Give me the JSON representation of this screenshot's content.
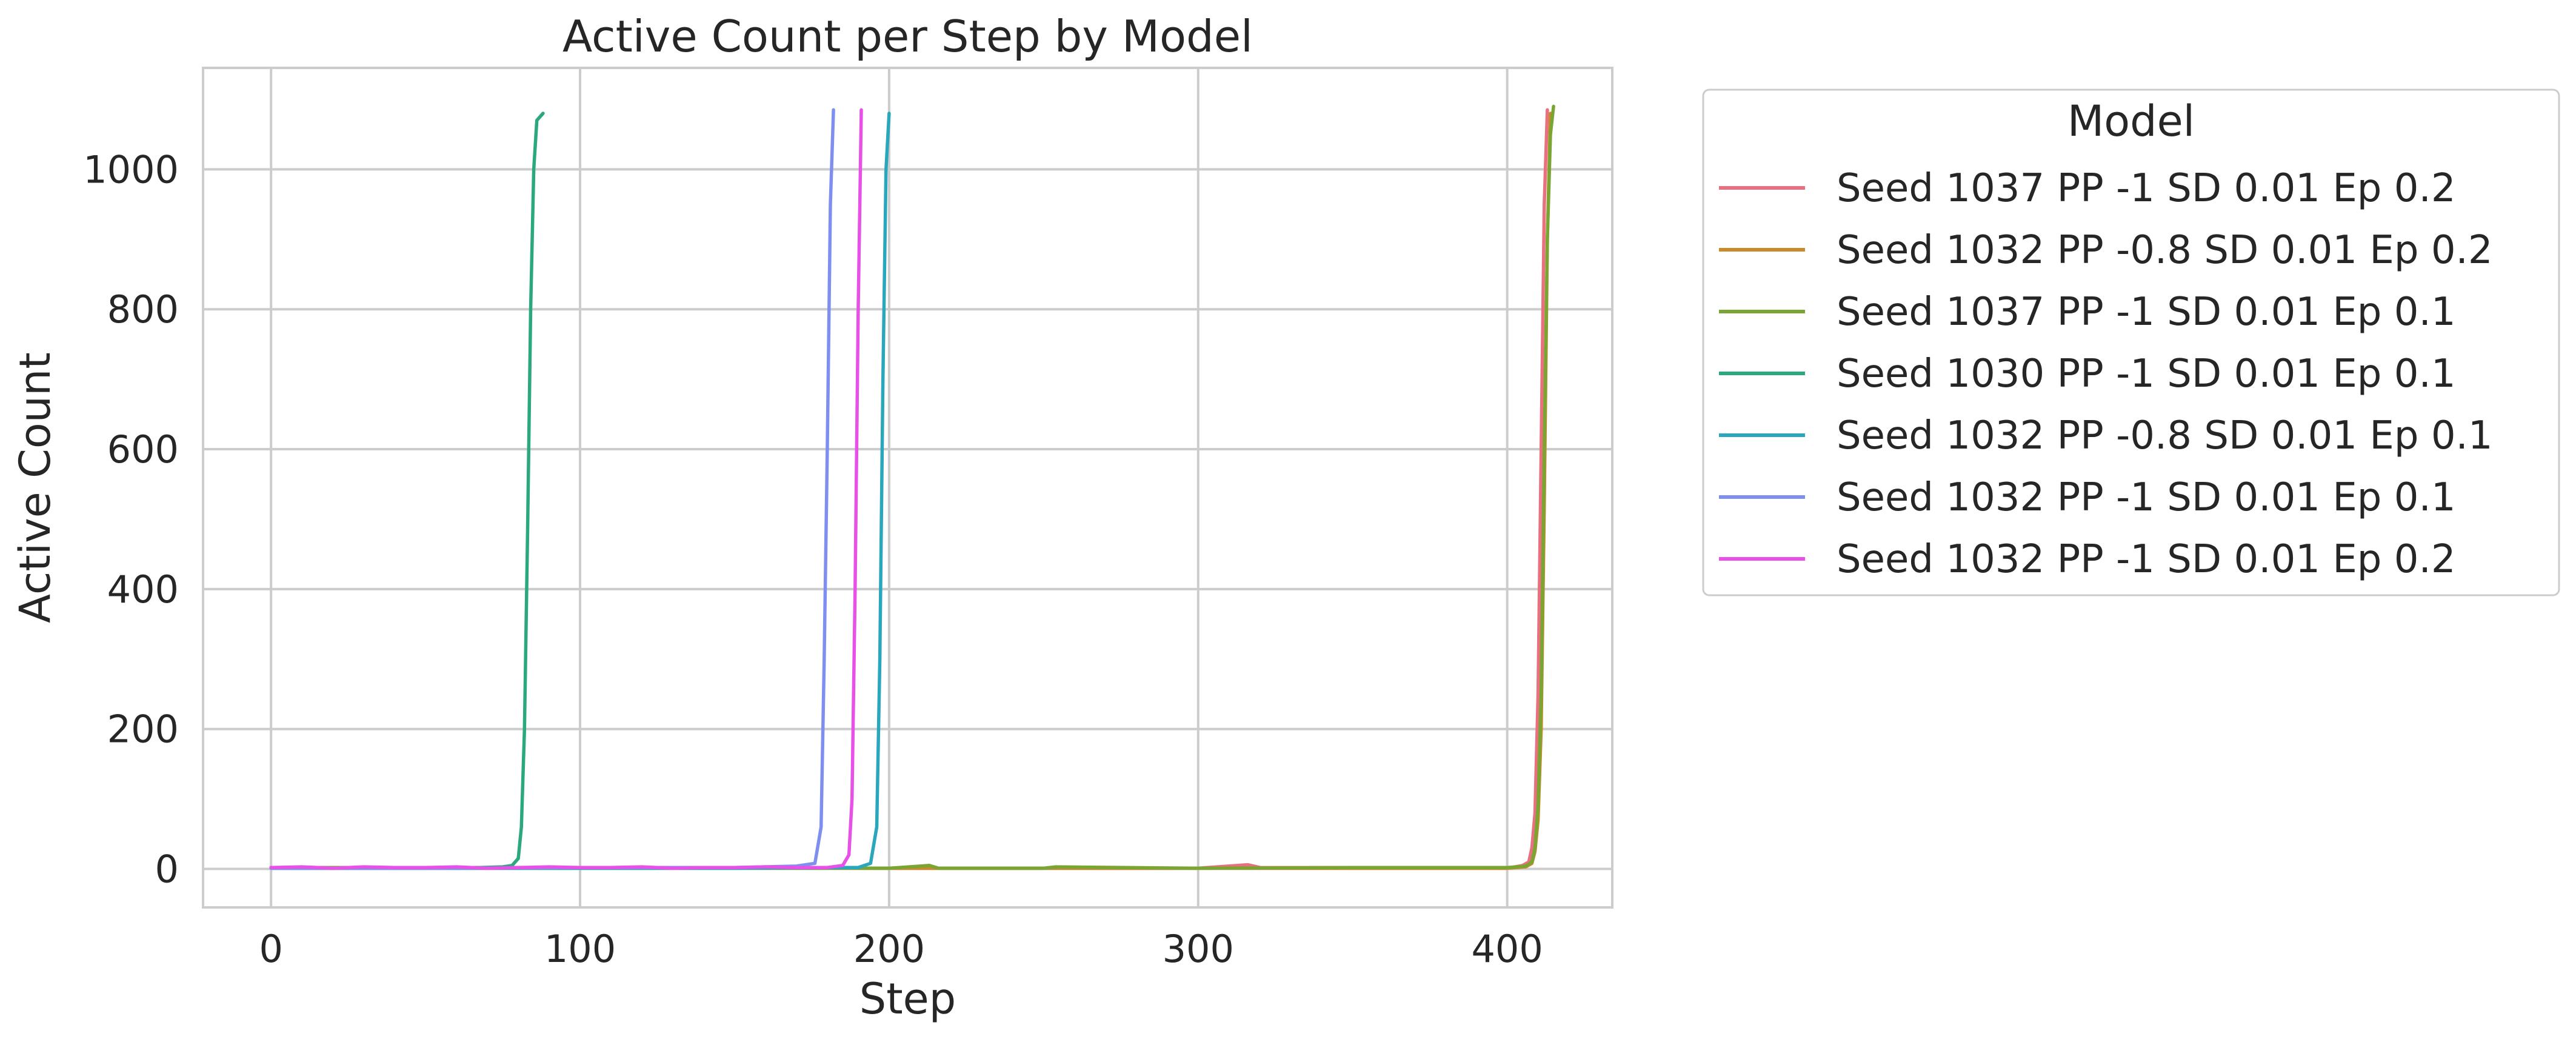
{
  "chart_data": {
    "type": "line",
    "title": "Active Count per Step by Model",
    "xlabel": "Step",
    "ylabel": "Active Count",
    "xlim": [
      -22,
      434
    ],
    "ylim": [
      -55,
      1145
    ],
    "xticks": [
      0,
      100,
      200,
      300,
      400
    ],
    "yticks": [
      0,
      200,
      400,
      600,
      800,
      1000
    ],
    "grid": true,
    "legend": {
      "title": "Model",
      "placement": "outside-right-top"
    },
    "series": [
      {
        "name": "Seed 1037 PP -1 SD 0.01 Ep 0.2",
        "color": "#e8707f",
        "x": [
          0,
          100,
          200,
          300,
          316,
          320,
          400,
          405,
          407,
          408,
          409,
          410,
          411,
          412,
          413
        ],
        "y": [
          2,
          2,
          1,
          1,
          6,
          2,
          1,
          5,
          10,
          30,
          80,
          250,
          600,
          950,
          1085
        ]
      },
      {
        "name": "Seed 1032 PP -0.8 SD 0.01 Ep 0.2",
        "color": "#c88a2b",
        "x": [
          0,
          100,
          200,
          300,
          400,
          406,
          408,
          409,
          410,
          411,
          412,
          413,
          414
        ],
        "y": [
          1,
          1,
          1,
          1,
          1,
          3,
          8,
          25,
          70,
          200,
          520,
          900,
          1080
        ]
      },
      {
        "name": "Seed 1037 PP -1 SD 0.01 Ep 0.1",
        "color": "#7ba532",
        "x": [
          0,
          100,
          200,
          213,
          216,
          250,
          254,
          300,
          350,
          400,
          406,
          408,
          409,
          410,
          411,
          412,
          413,
          414,
          415
        ],
        "y": [
          2,
          2,
          1,
          5,
          1,
          1,
          3,
          1,
          2,
          2,
          4,
          10,
          30,
          90,
          250,
          600,
          900,
          1050,
          1090
        ]
      },
      {
        "name": "Seed 1030 PP -1 SD 0.01 Ep 0.1",
        "color": "#2ba880",
        "x": [
          0,
          20,
          40,
          60,
          75,
          78,
          80,
          81,
          82,
          83,
          84,
          85,
          86,
          87,
          88
        ],
        "y": [
          2,
          1,
          2,
          1,
          3,
          5,
          15,
          60,
          200,
          480,
          800,
          1000,
          1070,
          1075,
          1080
        ]
      },
      {
        "name": "Seed 1032 PP -0.8 SD 0.01 Ep 0.1",
        "color": "#2aa6bd",
        "x": [
          0,
          50,
          100,
          150,
          190,
          194,
          196,
          197,
          198,
          199,
          200
        ],
        "y": [
          1,
          1,
          1,
          1,
          2,
          8,
          60,
          300,
          700,
          1000,
          1080
        ]
      },
      {
        "name": "Seed 1032 PP -1 SD 0.01 Ep 0.1",
        "color": "#7f8ff0",
        "x": [
          0,
          50,
          100,
          150,
          170,
          176,
          178,
          179,
          180,
          181,
          182
        ],
        "y": [
          1,
          1,
          2,
          2,
          4,
          8,
          60,
          300,
          600,
          950,
          1085
        ]
      },
      {
        "name": "Seed 1032 PP -1 SD 0.01 Ep 0.2",
        "color": "#e851e8",
        "x": [
          0,
          10,
          20,
          30,
          40,
          50,
          60,
          70,
          80,
          90,
          100,
          110,
          120,
          130,
          140,
          150,
          160,
          170,
          180,
          185,
          187,
          188,
          189,
          190,
          191
        ],
        "y": [
          2,
          3,
          1,
          3,
          2,
          2,
          3,
          1,
          2,
          3,
          2,
          2,
          3,
          1,
          2,
          2,
          3,
          2,
          2,
          5,
          20,
          100,
          400,
          800,
          1085
        ]
      }
    ]
  }
}
